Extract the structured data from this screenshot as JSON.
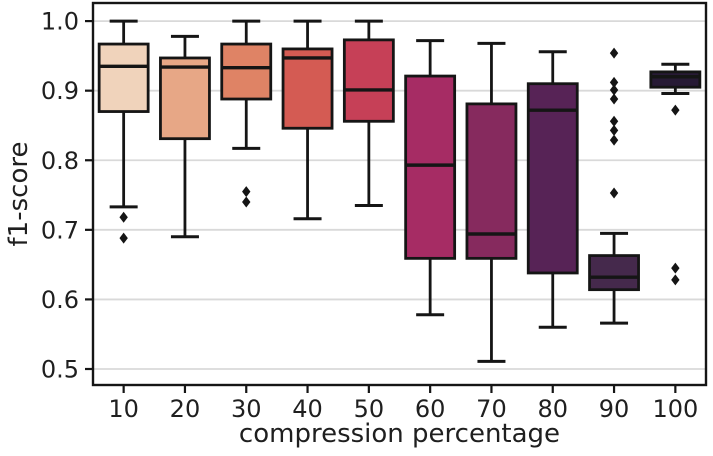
{
  "chart_data": {
    "type": "box",
    "title": "",
    "xlabel": "compression percentage",
    "ylabel": "f1-score",
    "categories": [
      "10",
      "20",
      "30",
      "40",
      "50",
      "60",
      "70",
      "80",
      "90",
      "100"
    ],
    "ylim": [
      0.477,
      1.026
    ],
    "yticks": [
      0.5,
      0.6,
      0.7,
      0.8,
      0.9,
      1.0
    ],
    "grid": "horizontal",
    "legend": "none",
    "style": {
      "grid_color": "#d9d9d9",
      "edge_color": "#151515",
      "tick_text_color": "#1f1f1f",
      "background": "#ffffff",
      "outlier_marker": "diamond"
    },
    "series": [
      {
        "category": "10",
        "color": "#f0d3bb",
        "whisker_low": 0.733,
        "q1": 0.87,
        "median": 0.935,
        "q3": 0.967,
        "whisker_high": 1.0,
        "outliers": [
          0.718,
          0.688
        ]
      },
      {
        "category": "20",
        "color": "#e7a786",
        "whisker_low": 0.69,
        "q1": 0.831,
        "median": 0.934,
        "q3": 0.947,
        "whisker_high": 0.978,
        "outliers": []
      },
      {
        "category": "30",
        "color": "#df8365",
        "whisker_low": 0.817,
        "q1": 0.888,
        "median": 0.933,
        "q3": 0.967,
        "whisker_high": 1.0,
        "outliers": [
          0.755,
          0.74
        ]
      },
      {
        "category": "40",
        "color": "#d45b53",
        "whisker_low": 0.716,
        "q1": 0.846,
        "median": 0.947,
        "q3": 0.96,
        "whisker_high": 1.0,
        "outliers": []
      },
      {
        "category": "50",
        "color": "#c64057",
        "whisker_low": 0.735,
        "q1": 0.856,
        "median": 0.901,
        "q3": 0.973,
        "whisker_high": 1.0,
        "outliers": []
      },
      {
        "category": "60",
        "color": "#a62c64",
        "whisker_low": 0.578,
        "q1": 0.659,
        "median": 0.793,
        "q3": 0.921,
        "whisker_high": 0.972,
        "outliers": []
      },
      {
        "category": "70",
        "color": "#862a5e",
        "whisker_low": 0.511,
        "q1": 0.659,
        "median": 0.694,
        "q3": 0.881,
        "whisker_high": 0.968,
        "outliers": []
      },
      {
        "category": "80",
        "color": "#572356",
        "whisker_low": 0.56,
        "q1": 0.638,
        "median": 0.872,
        "q3": 0.91,
        "whisker_high": 0.956,
        "outliers": []
      },
      {
        "category": "90",
        "color": "#45294c",
        "whisker_low": 0.566,
        "q1": 0.614,
        "median": 0.632,
        "q3": 0.663,
        "whisker_high": 0.695,
        "outliers": [
          0.954,
          0.912,
          0.901,
          0.888,
          0.856,
          0.843,
          0.829,
          0.753
        ]
      },
      {
        "category": "100",
        "color": "#271a35",
        "whisker_low": 0.896,
        "q1": 0.905,
        "median": 0.92,
        "q3": 0.927,
        "whisker_high": 0.938,
        "outliers": [
          0.872,
          0.645,
          0.628
        ]
      }
    ]
  }
}
